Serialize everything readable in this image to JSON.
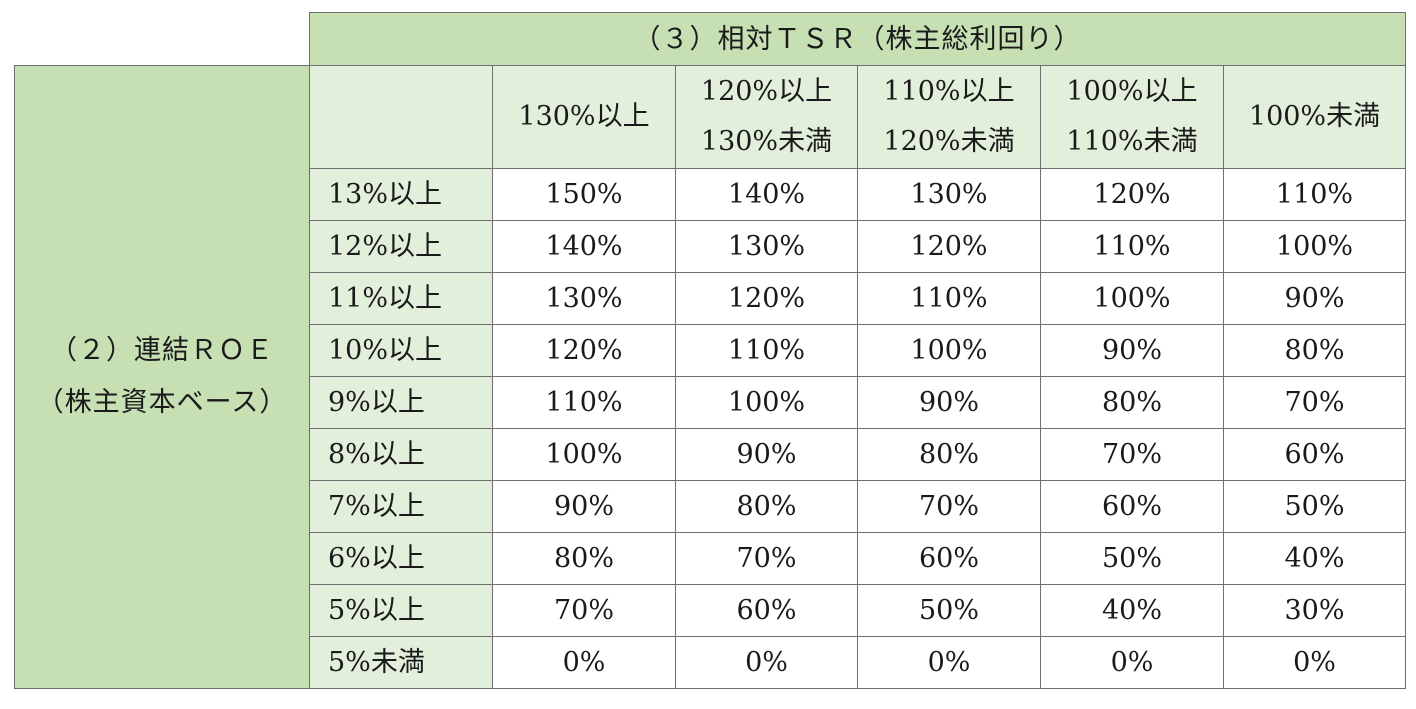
{
  "tsr_header": "（３）相対ＴＳＲ（株主総利回り）",
  "roe_header": {
    "line1": "（２）連結ＲＯＥ",
    "line2": "（株主資本ベース）"
  },
  "columns": [
    {
      "line1": "130%以上",
      "line2": ""
    },
    {
      "line1": "120%以上",
      "line2": "130%未満"
    },
    {
      "line1": "110%以上",
      "line2": "120%未満"
    },
    {
      "line1": "100%以上",
      "line2": "110%未満"
    },
    {
      "line1": "100%未満",
      "line2": ""
    }
  ],
  "rows": [
    {
      "label": "13%以上",
      "values": [
        "150%",
        "140%",
        "130%",
        "120%",
        "110%"
      ]
    },
    {
      "label": "12%以上",
      "values": [
        "140%",
        "130%",
        "120%",
        "110%",
        "100%"
      ]
    },
    {
      "label": "11%以上",
      "values": [
        "130%",
        "120%",
        "110%",
        "100%",
        "90%"
      ]
    },
    {
      "label": "10%以上",
      "values": [
        "120%",
        "110%",
        "100%",
        "90%",
        "80%"
      ]
    },
    {
      "label": "9%以上",
      "values": [
        "110%",
        "100%",
        "90%",
        "80%",
        "70%"
      ]
    },
    {
      "label": "8%以上",
      "values": [
        "100%",
        "90%",
        "80%",
        "70%",
        "60%"
      ]
    },
    {
      "label": "7%以上",
      "values": [
        "90%",
        "80%",
        "70%",
        "60%",
        "50%"
      ]
    },
    {
      "label": "6%以上",
      "values": [
        "80%",
        "70%",
        "60%",
        "50%",
        "40%"
      ]
    },
    {
      "label": "5%以上",
      "values": [
        "70%",
        "60%",
        "50%",
        "40%",
        "30%"
      ]
    },
    {
      "label": "5%未満",
      "values": [
        "0%",
        "0%",
        "0%",
        "0%",
        "0%"
      ]
    }
  ],
  "colors": {
    "header_green": "#c6e0b4",
    "light_green": "#e2efda",
    "border": "#6f6f6f"
  }
}
